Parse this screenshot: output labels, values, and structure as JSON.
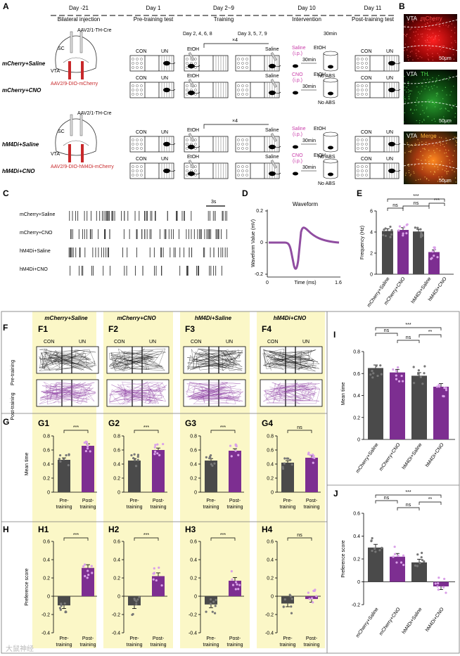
{
  "panels": {
    "A": "A",
    "B": "B",
    "C": "C",
    "D": "D",
    "E": "E",
    "F": "F",
    "G": "G",
    "H": "H",
    "I": "I",
    "J": "J"
  },
  "timeline": {
    "steps": [
      {
        "day": "Day -21",
        "name": "Bilateral injection"
      },
      {
        "day": "Day 1",
        "name": "Pre-training test"
      },
      {
        "day": "Day 2~9",
        "name": "Training"
      },
      {
        "day": "Day 10",
        "name": "Intervention"
      },
      {
        "day": "Day 11",
        "name": "Post-training test"
      }
    ],
    "training_days_a": "Day 2, 4, 6, 8",
    "training_days_b": "Day 3, 5, 7, 9",
    "repeat": "×4",
    "time": "30min"
  },
  "groups": [
    "mCherry+Saline",
    "mCherry+CNO",
    "hM4Di+Saline",
    "hM4Di+CNO"
  ],
  "labels": {
    "con": "CON",
    "un": "UN",
    "etoh": "EtOH",
    "saline": "Saline",
    "cno": "CNO",
    "ip": "(i.p.)",
    "no_abs": "No ABS",
    "sc": "SC",
    "vta": "VTA",
    "virus_top": "AAV2/1-TH-Cre",
    "virus_m": "AAV2/9-DIO-mCherry",
    "virus_h": "AAV2/9-DIO-hM4Di-mCherry",
    "mcherry": "mCherry",
    "th": "TH",
    "merge": "Merge",
    "scale": "50μm",
    "scale_3s": "3s",
    "pre": "Pre-training",
    "post": "Post-training",
    "pre_a": "Pre-",
    "pre_b": "training",
    "post_a": "Post-",
    "post_b": "training"
  },
  "colors": {
    "grey": "#4a4a4a",
    "purple": "#7d2e91",
    "yellow": "#fbf7c7",
    "red": "#c8282a"
  },
  "waveform": {
    "title": "Waveform",
    "ylabel": "Waveform Value (mV)",
    "xlabel": "Time (ms)",
    "xticks": [
      "0",
      "1.6"
    ],
    "yticks": [
      "0.2",
      "0",
      "-0.2"
    ]
  },
  "chart_data": [
    {
      "id": "E",
      "type": "bar",
      "ylabel": "Frequency (Hz)",
      "ylim": [
        0,
        6
      ],
      "yticks": [
        "0",
        "2",
        "4",
        "6"
      ],
      "categories": [
        "mCherry+Saline",
        "mCherry+CNO",
        "hM4Di+Saline",
        "hM4Di+CNO"
      ],
      "values": [
        4.1,
        4.2,
        4.05,
        2.1
      ],
      "sig": [
        "ns",
        "ns",
        "***",
        "***"
      ]
    },
    {
      "id": "G",
      "type": "bar",
      "ylabel": "Mean time",
      "ylim": [
        0,
        0.8
      ],
      "yticks": [
        "0",
        "0.2",
        "0.4",
        "0.6",
        "0.8"
      ],
      "panels": [
        {
          "title": "G1",
          "values": [
            0.46,
            0.66
          ],
          "sig": "***"
        },
        {
          "title": "G2",
          "values": [
            0.45,
            0.6
          ],
          "sig": "***"
        },
        {
          "title": "G3",
          "values": [
            0.45,
            0.59
          ],
          "sig": "***"
        },
        {
          "title": "G4",
          "values": [
            0.42,
            0.49
          ],
          "sig": "ns"
        }
      ]
    },
    {
      "id": "H",
      "type": "bar",
      "ylabel": "Preference score",
      "ylim": [
        -0.4,
        0.6
      ],
      "yticks": [
        "0.6",
        "0.4",
        "0.2",
        "0",
        "-0.2",
        "-0.4"
      ],
      "panels": [
        {
          "title": "H1",
          "values": [
            -0.1,
            0.31
          ],
          "sig": "***"
        },
        {
          "title": "H2",
          "values": [
            -0.1,
            0.22
          ],
          "sig": "***"
        },
        {
          "title": "H3",
          "values": [
            -0.09,
            0.17
          ],
          "sig": "***"
        },
        {
          "title": "H4",
          "values": [
            -0.08,
            -0.03
          ],
          "sig": "ns"
        }
      ]
    },
    {
      "id": "I",
      "type": "bar",
      "ylabel": "Mean time",
      "ylim": [
        0,
        0.8
      ],
      "yticks": [
        "0",
        "0.2",
        "0.4",
        "0.6",
        "0.8"
      ],
      "categories": [
        "mCherry+Saline",
        "mCherry+CNO",
        "hM4Di+Saline",
        "hM4Di+CNO"
      ],
      "values": [
        0.65,
        0.61,
        0.58,
        0.48
      ],
      "sig": [
        "ns",
        "ns",
        "***",
        "**"
      ]
    },
    {
      "id": "J",
      "type": "bar",
      "ylabel": "Preference score",
      "ylim": [
        -0.2,
        0.6
      ],
      "yticks": [
        "0.6",
        "0.4",
        "0.2",
        "0",
        "-0.2"
      ],
      "categories": [
        "mCherry+Saline",
        "mCherry+CNO",
        "hM4Di+Saline",
        "hM4Di+CNO"
      ],
      "values": [
        0.3,
        0.22,
        0.17,
        -0.04
      ],
      "sig": [
        "ns",
        "ns",
        "***",
        "**"
      ]
    }
  ],
  "watermark": "大鼠神经"
}
